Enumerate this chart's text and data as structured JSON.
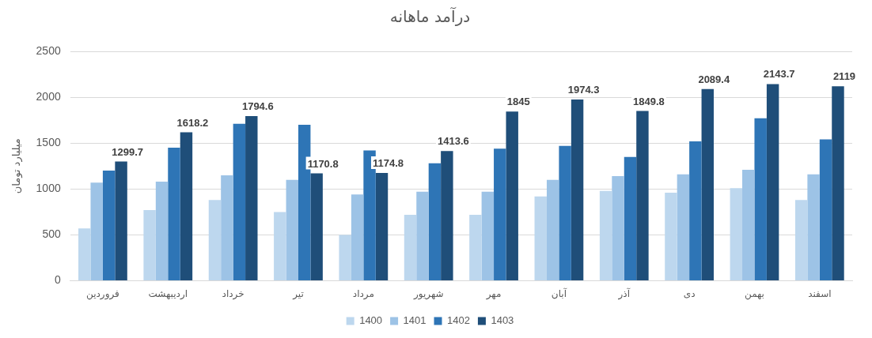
{
  "chart_data": {
    "type": "bar",
    "title": "درآمد ماهانه",
    "ylabel": "میلیارد تومان",
    "categories": [
      "فروردین",
      "اردیبهشت",
      "خرداد",
      "تیر",
      "مرداد",
      "شهریور",
      "مهر",
      "آبان",
      "آذر",
      "دی",
      "بهمن",
      "اسفند"
    ],
    "series": [
      {
        "name": "1400",
        "color": "#bdd7ee",
        "values": [
          570,
          770,
          880,
          750,
          500,
          720,
          720,
          920,
          980,
          960,
          1010,
          880
        ]
      },
      {
        "name": "1401",
        "color": "#9dc3e6",
        "values": [
          1070,
          1080,
          1150,
          1100,
          940,
          970,
          970,
          1100,
          1140,
          1160,
          1210,
          1160
        ]
      },
      {
        "name": "1402",
        "color": "#2e75b6",
        "values": [
          1200,
          1450,
          1710,
          1700,
          1420,
          1280,
          1440,
          1470,
          1350,
          1520,
          1770,
          1540
        ]
      },
      {
        "name": "1403",
        "color": "#1f4e79",
        "values": [
          1299.7,
          1618.2,
          1794.6,
          1170.8,
          1174.8,
          1413.6,
          1845,
          1974.3,
          1849.8,
          2089.4,
          2143.7,
          2119
        ],
        "value_labels": [
          "1299.7",
          "1618.2",
          "1794.6",
          "1170.8",
          "1174.8",
          "1413.6",
          "1845",
          "1974.3",
          "1849.8",
          "2089.4",
          "2143.7",
          "2119"
        ]
      }
    ],
    "ylim": [
      0,
      2500
    ],
    "yticks": [
      0,
      500,
      1000,
      1500,
      2000,
      2500
    ],
    "grid": "y",
    "legend": "bottom"
  }
}
